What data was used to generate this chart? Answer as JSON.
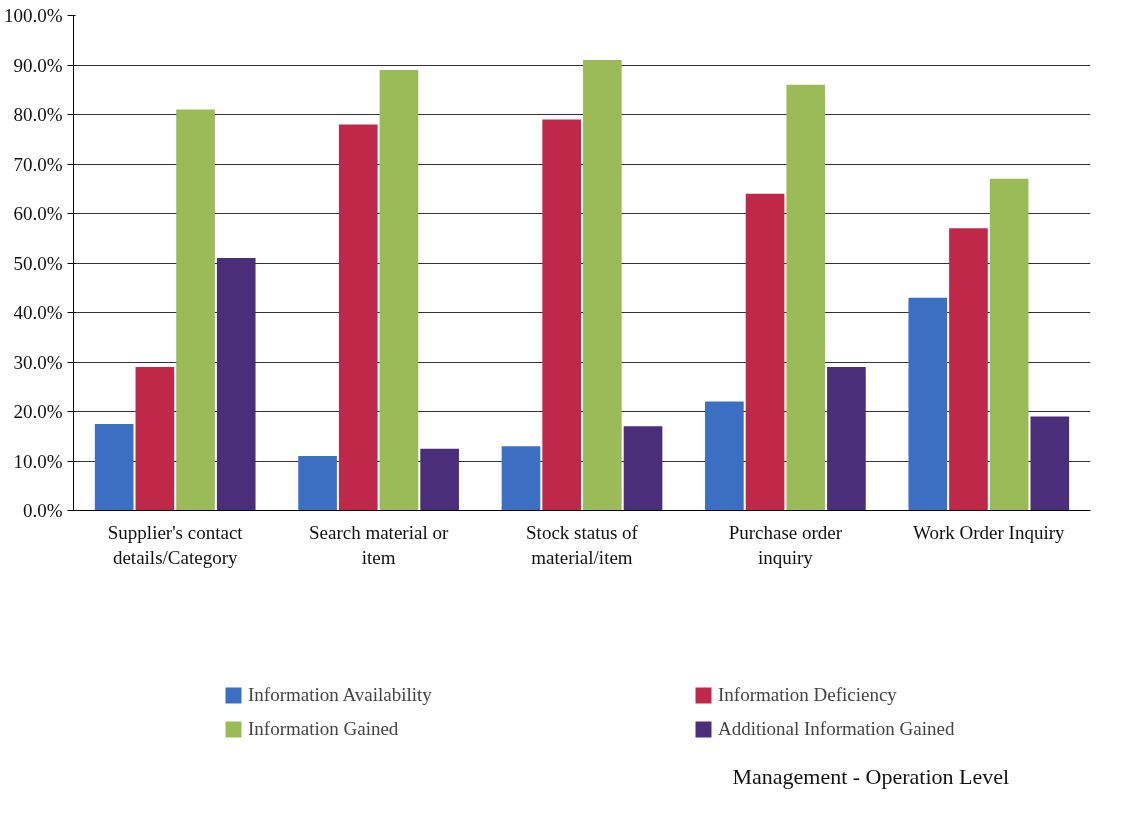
{
  "chart_data": {
    "type": "bar",
    "title": "Management - Operation Level",
    "categories": [
      "Supplier's contact details/Category",
      "Search material or item",
      "Stock status of material/item",
      "Purchase order inquiry",
      "Work Order Inquiry"
    ],
    "series": [
      {
        "name": "Information Availability",
        "color": "#3a6fc4",
        "values": [
          17.5,
          11,
          13,
          22,
          43
        ]
      },
      {
        "name": "Information Deficiency",
        "color": "#c0284a",
        "values": [
          29,
          78,
          79,
          64,
          57
        ]
      },
      {
        "name": "Information Gained",
        "color": "#9bbb59",
        "values": [
          81,
          89,
          91,
          86,
          67
        ]
      },
      {
        "name": "Additional Information Gained",
        "color": "#4b2e7a",
        "values": [
          51,
          12.5,
          17,
          29,
          19
        ]
      }
    ],
    "ylim": [
      0,
      100
    ],
    "yticks": [
      {
        "value": 0,
        "label": "0.0%"
      },
      {
        "value": 10,
        "label": "10.0%"
      },
      {
        "value": 20,
        "label": "20.0%"
      },
      {
        "value": 30,
        "label": "30.0%"
      },
      {
        "value": 40,
        "label": "40.0%"
      },
      {
        "value": 50,
        "label": "50.0%"
      },
      {
        "value": 60,
        "label": "60.0%"
      },
      {
        "value": 70,
        "label": "70.0%"
      },
      {
        "value": 80,
        "label": "80.0%"
      },
      {
        "value": 90,
        "label": "90.0%"
      },
      {
        "value": 100,
        "label": "100.0%"
      }
    ],
    "grid": "y",
    "legend": "bottom"
  }
}
